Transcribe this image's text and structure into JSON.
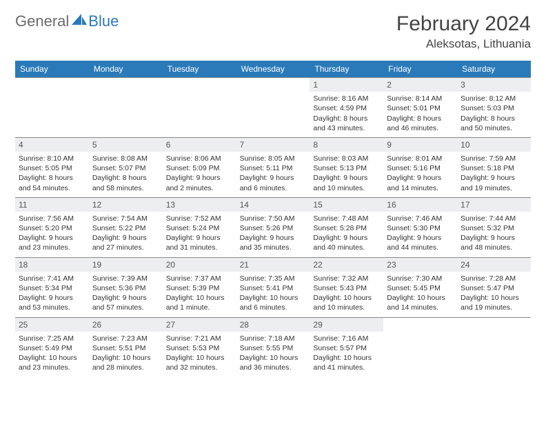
{
  "logo": {
    "text1": "General",
    "text2": "Blue"
  },
  "title": "February 2024",
  "location": "Aleksotas, Lithuania",
  "colors": {
    "header_bg": "#2a7ab9",
    "daynum_bg": "#eceef0",
    "border": "#888888",
    "text": "#333333"
  },
  "fonts": {
    "title_size": 30,
    "location_size": 17,
    "dayhead_size": 12,
    "cell_size": 10.5
  },
  "dayNames": [
    "Sunday",
    "Monday",
    "Tuesday",
    "Wednesday",
    "Thursday",
    "Friday",
    "Saturday"
  ],
  "weeks": [
    [
      {
        "blank": true
      },
      {
        "blank": true
      },
      {
        "blank": true
      },
      {
        "blank": true
      },
      {
        "d": "1",
        "sr": "Sunrise: 8:16 AM",
        "ss": "Sunset: 4:59 PM",
        "dl1": "Daylight: 8 hours",
        "dl2": "and 43 minutes."
      },
      {
        "d": "2",
        "sr": "Sunrise: 8:14 AM",
        "ss": "Sunset: 5:01 PM",
        "dl1": "Daylight: 8 hours",
        "dl2": "and 46 minutes."
      },
      {
        "d": "3",
        "sr": "Sunrise: 8:12 AM",
        "ss": "Sunset: 5:03 PM",
        "dl1": "Daylight: 8 hours",
        "dl2": "and 50 minutes."
      }
    ],
    [
      {
        "d": "4",
        "sr": "Sunrise: 8:10 AM",
        "ss": "Sunset: 5:05 PM",
        "dl1": "Daylight: 8 hours",
        "dl2": "and 54 minutes."
      },
      {
        "d": "5",
        "sr": "Sunrise: 8:08 AM",
        "ss": "Sunset: 5:07 PM",
        "dl1": "Daylight: 8 hours",
        "dl2": "and 58 minutes."
      },
      {
        "d": "6",
        "sr": "Sunrise: 8:06 AM",
        "ss": "Sunset: 5:09 PM",
        "dl1": "Daylight: 9 hours",
        "dl2": "and 2 minutes."
      },
      {
        "d": "7",
        "sr": "Sunrise: 8:05 AM",
        "ss": "Sunset: 5:11 PM",
        "dl1": "Daylight: 9 hours",
        "dl2": "and 6 minutes."
      },
      {
        "d": "8",
        "sr": "Sunrise: 8:03 AM",
        "ss": "Sunset: 5:13 PM",
        "dl1": "Daylight: 9 hours",
        "dl2": "and 10 minutes."
      },
      {
        "d": "9",
        "sr": "Sunrise: 8:01 AM",
        "ss": "Sunset: 5:16 PM",
        "dl1": "Daylight: 9 hours",
        "dl2": "and 14 minutes."
      },
      {
        "d": "10",
        "sr": "Sunrise: 7:59 AM",
        "ss": "Sunset: 5:18 PM",
        "dl1": "Daylight: 9 hours",
        "dl2": "and 19 minutes."
      }
    ],
    [
      {
        "d": "11",
        "sr": "Sunrise: 7:56 AM",
        "ss": "Sunset: 5:20 PM",
        "dl1": "Daylight: 9 hours",
        "dl2": "and 23 minutes."
      },
      {
        "d": "12",
        "sr": "Sunrise: 7:54 AM",
        "ss": "Sunset: 5:22 PM",
        "dl1": "Daylight: 9 hours",
        "dl2": "and 27 minutes."
      },
      {
        "d": "13",
        "sr": "Sunrise: 7:52 AM",
        "ss": "Sunset: 5:24 PM",
        "dl1": "Daylight: 9 hours",
        "dl2": "and 31 minutes."
      },
      {
        "d": "14",
        "sr": "Sunrise: 7:50 AM",
        "ss": "Sunset: 5:26 PM",
        "dl1": "Daylight: 9 hours",
        "dl2": "and 35 minutes."
      },
      {
        "d": "15",
        "sr": "Sunrise: 7:48 AM",
        "ss": "Sunset: 5:28 PM",
        "dl1": "Daylight: 9 hours",
        "dl2": "and 40 minutes."
      },
      {
        "d": "16",
        "sr": "Sunrise: 7:46 AM",
        "ss": "Sunset: 5:30 PM",
        "dl1": "Daylight: 9 hours",
        "dl2": "and 44 minutes."
      },
      {
        "d": "17",
        "sr": "Sunrise: 7:44 AM",
        "ss": "Sunset: 5:32 PM",
        "dl1": "Daylight: 9 hours",
        "dl2": "and 48 minutes."
      }
    ],
    [
      {
        "d": "18",
        "sr": "Sunrise: 7:41 AM",
        "ss": "Sunset: 5:34 PM",
        "dl1": "Daylight: 9 hours",
        "dl2": "and 53 minutes."
      },
      {
        "d": "19",
        "sr": "Sunrise: 7:39 AM",
        "ss": "Sunset: 5:36 PM",
        "dl1": "Daylight: 9 hours",
        "dl2": "and 57 minutes."
      },
      {
        "d": "20",
        "sr": "Sunrise: 7:37 AM",
        "ss": "Sunset: 5:39 PM",
        "dl1": "Daylight: 10 hours",
        "dl2": "and 1 minute."
      },
      {
        "d": "21",
        "sr": "Sunrise: 7:35 AM",
        "ss": "Sunset: 5:41 PM",
        "dl1": "Daylight: 10 hours",
        "dl2": "and 6 minutes."
      },
      {
        "d": "22",
        "sr": "Sunrise: 7:32 AM",
        "ss": "Sunset: 5:43 PM",
        "dl1": "Daylight: 10 hours",
        "dl2": "and 10 minutes."
      },
      {
        "d": "23",
        "sr": "Sunrise: 7:30 AM",
        "ss": "Sunset: 5:45 PM",
        "dl1": "Daylight: 10 hours",
        "dl2": "and 14 minutes."
      },
      {
        "d": "24",
        "sr": "Sunrise: 7:28 AM",
        "ss": "Sunset: 5:47 PM",
        "dl1": "Daylight: 10 hours",
        "dl2": "and 19 minutes."
      }
    ],
    [
      {
        "d": "25",
        "sr": "Sunrise: 7:25 AM",
        "ss": "Sunset: 5:49 PM",
        "dl1": "Daylight: 10 hours",
        "dl2": "and 23 minutes."
      },
      {
        "d": "26",
        "sr": "Sunrise: 7:23 AM",
        "ss": "Sunset: 5:51 PM",
        "dl1": "Daylight: 10 hours",
        "dl2": "and 28 minutes."
      },
      {
        "d": "27",
        "sr": "Sunrise: 7:21 AM",
        "ss": "Sunset: 5:53 PM",
        "dl1": "Daylight: 10 hours",
        "dl2": "and 32 minutes."
      },
      {
        "d": "28",
        "sr": "Sunrise: 7:18 AM",
        "ss": "Sunset: 5:55 PM",
        "dl1": "Daylight: 10 hours",
        "dl2": "and 36 minutes."
      },
      {
        "d": "29",
        "sr": "Sunrise: 7:16 AM",
        "ss": "Sunset: 5:57 PM",
        "dl1": "Daylight: 10 hours",
        "dl2": "and 41 minutes."
      },
      {
        "blank": true
      },
      {
        "blank": true
      }
    ]
  ]
}
